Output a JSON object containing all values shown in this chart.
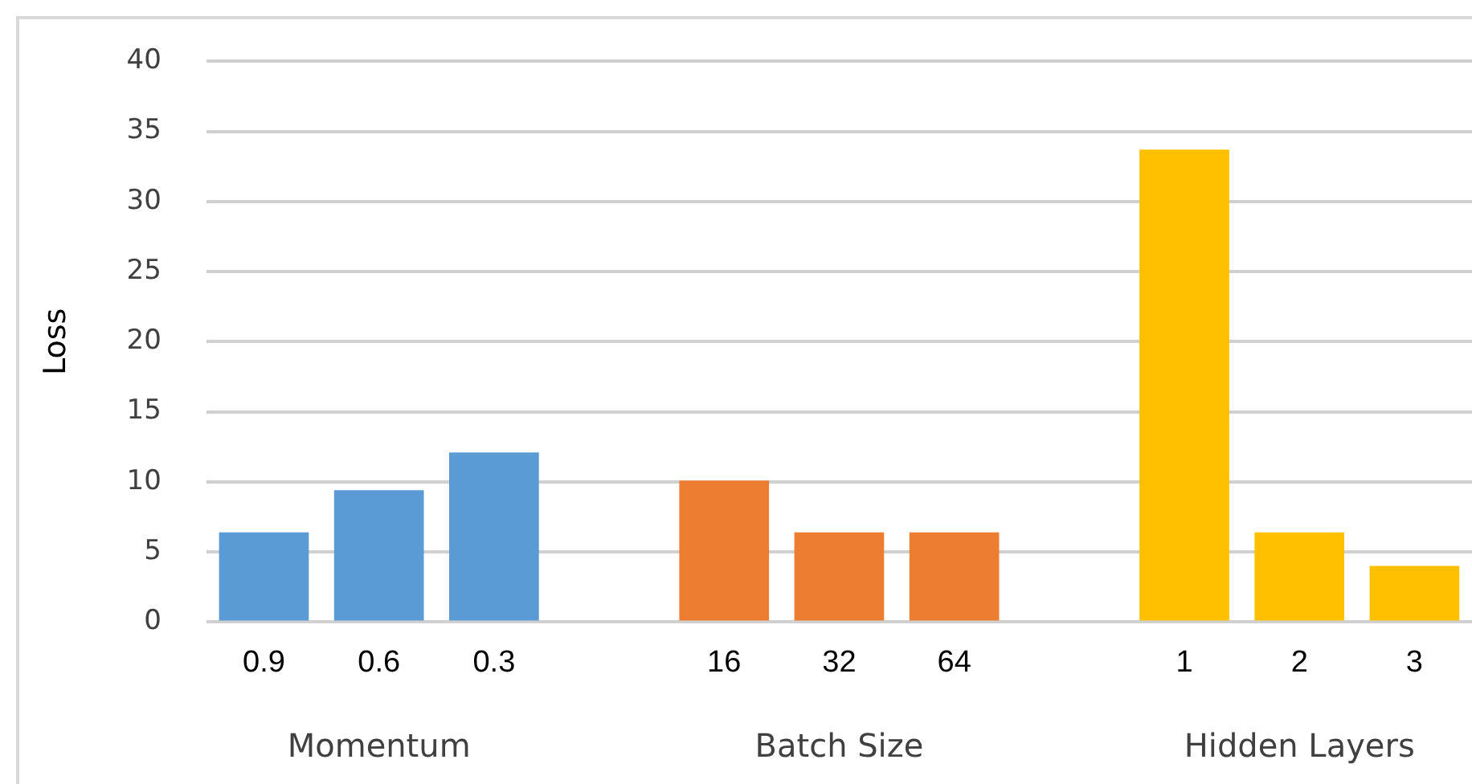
{
  "chart_data": {
    "type": "bar",
    "ylabel": "Loss",
    "categories": [
      "0.9",
      "0.6",
      "0.3",
      null,
      "16",
      "32",
      "64",
      null,
      "1",
      "2",
      "3"
    ],
    "series": [
      {
        "color": "#5b9bd5",
        "values": [
          6.4,
          9.4,
          12.1,
          null,
          null,
          null,
          null,
          null,
          null,
          null,
          null
        ]
      },
      {
        "color": "#ed7d31",
        "values": [
          null,
          null,
          null,
          null,
          10.1,
          6.4,
          6.4,
          null,
          null,
          null,
          null
        ]
      },
      {
        "color": "#ffc000",
        "values": [
          null,
          null,
          null,
          null,
          null,
          null,
          null,
          null,
          33.7,
          6.4,
          4.0
        ]
      }
    ],
    "ylim": [
      0,
      40
    ],
    "yticks": [
      0,
      5,
      10,
      15,
      20,
      25,
      30,
      35,
      40
    ],
    "grid": "y",
    "legend": false,
    "annotations": [
      "Momentum",
      "Batch Size",
      "Hidden Layers"
    ]
  }
}
